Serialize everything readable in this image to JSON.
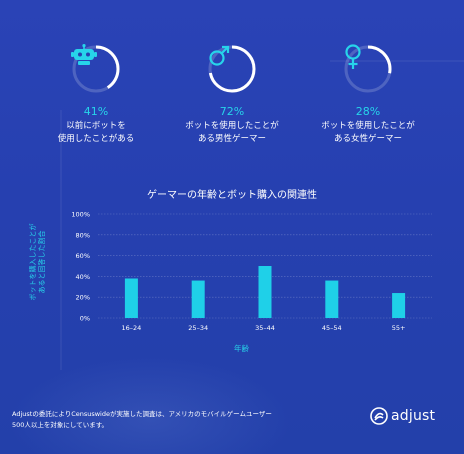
{
  "stats": [
    {
      "icon": "robot-icon",
      "percent": 41,
      "percent_label": "41%",
      "line1": "以前にボットを",
      "line2": "使用したことがある"
    },
    {
      "icon": "male-icon",
      "percent": 72,
      "percent_label": "72%",
      "line1": "ボットを使用したことが",
      "line2": "ある男性ゲーマー"
    },
    {
      "icon": "female-icon",
      "percent": 28,
      "percent_label": "28%",
      "line1": "ボットを使用したことが",
      "line2": "ある女性ゲーマー"
    }
  ],
  "chart_data": {
    "type": "bar",
    "title": "ゲーマーの年齢とボット購入の関連性",
    "categories": [
      "16–24",
      "25–34",
      "35–44",
      "45–54",
      "55+"
    ],
    "values": [
      38,
      36,
      50,
      36,
      24
    ],
    "ylabel_line1": "ボットを購入したことが",
    "ylabel_line2": "あると回答した割合",
    "xlabel": "年齢",
    "yticks": [
      "0%",
      "20%",
      "40%",
      "60%",
      "80%",
      "100%"
    ],
    "ylim": [
      0,
      100
    ],
    "grid": true,
    "bar_color": "#1fd0e8"
  },
  "footer": {
    "line1": "Adjustの委託によりCensuswideが実施した調査は、アメリカのモバイルゲームユーザー",
    "line2": "500人以上を対象にしています。"
  },
  "logo": {
    "text": "adjust"
  },
  "colors": {
    "accent": "#27d4ea",
    "background": "#2640b0"
  }
}
